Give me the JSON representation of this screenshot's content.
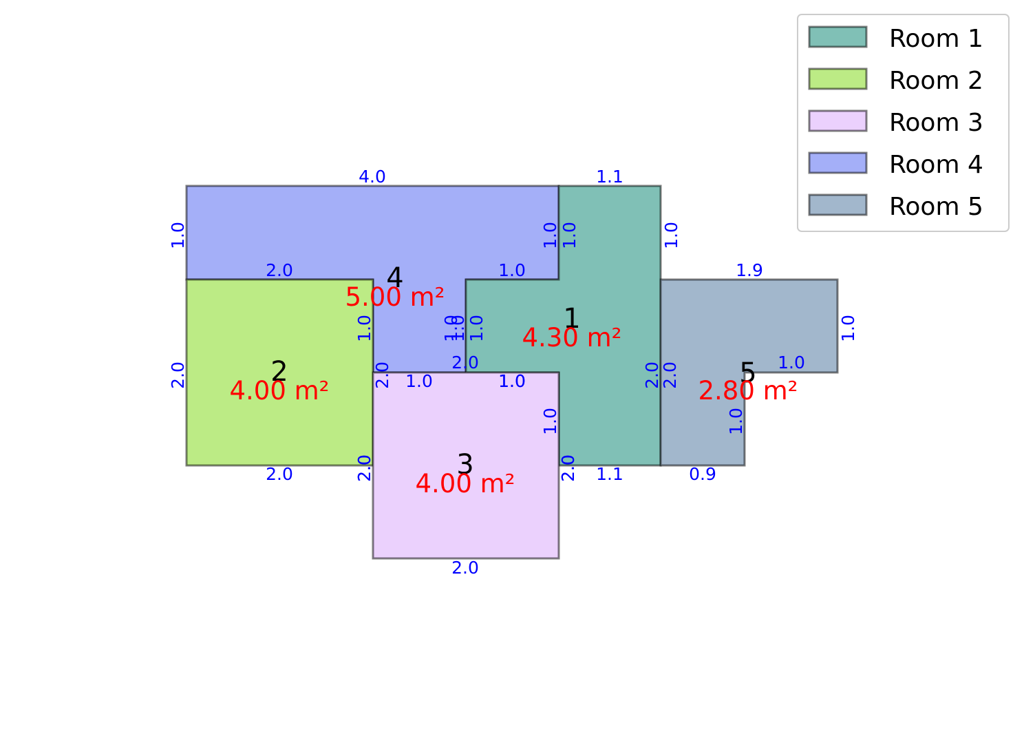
{
  "rooms": [
    {
      "id": "1",
      "legend": "Room 1",
      "area": "4.30 m²",
      "color": "#80C0B6"
    },
    {
      "id": "2",
      "legend": "Room 2",
      "area": "4.00 m²",
      "color": "#BCEB85"
    },
    {
      "id": "3",
      "legend": "Room 3",
      "area": "4.00 m²",
      "color": "#EBD1FD"
    },
    {
      "id": "4",
      "legend": "Room 4",
      "area": "5.00 m²",
      "color": "#A4AFF8"
    },
    {
      "id": "5",
      "legend": "Room 5",
      "area": "2.80 m²",
      "color": "#A2B7CC"
    }
  ],
  "dimensions": {
    "room4": [
      "4.0",
      "1.0",
      "2.0",
      "1.0",
      "1.0",
      "1.0",
      "1.0"
    ],
    "room1": [
      "1.1",
      "1.0",
      "2.0",
      "1.1",
      "2.0",
      "1.0",
      "1.0",
      "1.0",
      "1.0"
    ],
    "room2": [
      "2.0",
      "2.0",
      "2.0",
      "1.0",
      "2.0"
    ],
    "room3": [
      "1.0",
      "1.0",
      "2.0",
      "2.0",
      "2.0",
      "2.0"
    ],
    "room5": [
      "1.9",
      "1.0",
      "1.0",
      "1.0",
      "0.9",
      "2.0"
    ]
  }
}
